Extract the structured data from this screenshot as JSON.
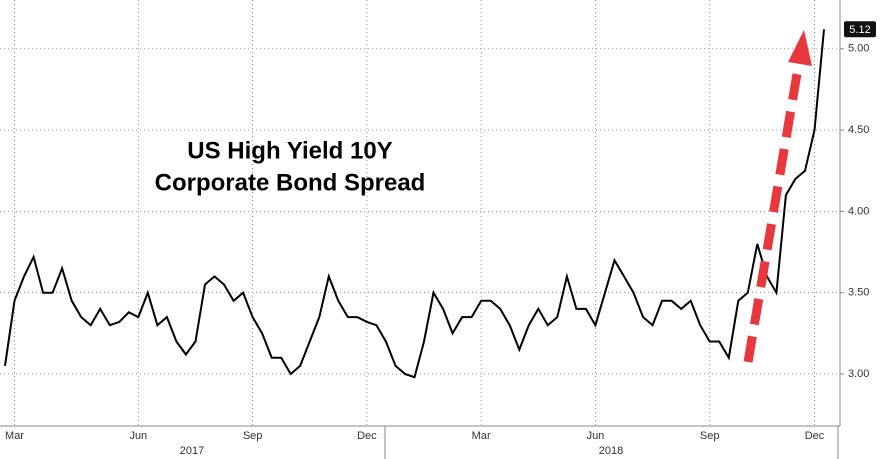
{
  "chart_data": {
    "type": "line",
    "title_lines": [
      "US High Yield 10Y",
      "Corporate Bond Spread"
    ],
    "categories": [
      null,
      "Mar",
      null,
      null,
      null,
      null,
      null,
      null,
      null,
      null,
      null,
      null,
      null,
      null,
      "Jun",
      null,
      null,
      null,
      null,
      null,
      null,
      null,
      null,
      null,
      null,
      null,
      "Sep",
      null,
      null,
      null,
      null,
      null,
      null,
      null,
      null,
      null,
      null,
      null,
      "Dec",
      null,
      null,
      null,
      null,
      null,
      null,
      null,
      null,
      null,
      null,
      null,
      "Mar",
      null,
      null,
      null,
      null,
      null,
      null,
      null,
      null,
      null,
      null,
      null,
      "Jun",
      null,
      null,
      null,
      null,
      null,
      null,
      null,
      null,
      null,
      null,
      null,
      "Sep",
      null,
      null,
      null,
      null,
      null,
      null,
      null,
      null,
      null,
      null,
      "Dec",
      null
    ],
    "year_labels": [
      "2017",
      "2018"
    ],
    "series": [
      {
        "name": "US High Yield 10Y Corporate Bond Spread",
        "color": "#000000",
        "values": [
          3.05,
          3.45,
          3.6,
          3.72,
          3.5,
          3.5,
          3.65,
          3.45,
          3.35,
          3.3,
          3.4,
          3.3,
          3.32,
          3.38,
          3.35,
          3.5,
          3.3,
          3.35,
          3.2,
          3.12,
          3.2,
          3.55,
          3.6,
          3.55,
          3.45,
          3.5,
          3.35,
          3.25,
          3.1,
          3.1,
          3.0,
          3.05,
          3.2,
          3.35,
          3.6,
          3.45,
          3.35,
          3.35,
          3.32,
          3.3,
          3.2,
          3.05,
          3.0,
          2.98,
          3.2,
          3.5,
          3.4,
          3.25,
          3.35,
          3.35,
          3.45,
          3.45,
          3.4,
          3.3,
          3.15,
          3.3,
          3.4,
          3.3,
          3.35,
          3.6,
          3.4,
          3.4,
          3.3,
          3.5,
          3.7,
          3.6,
          3.5,
          3.35,
          3.3,
          3.45,
          3.45,
          3.4,
          3.45,
          3.3,
          3.2,
          3.2,
          3.1,
          3.45,
          3.5,
          3.8,
          3.6,
          3.5,
          4.1,
          4.2,
          4.25,
          4.5,
          5.12
        ]
      }
    ],
    "ylim": [
      2.68,
      5.3
    ],
    "yticks": [
      {
        "value": 3,
        "label": "3.00"
      },
      {
        "value": 3.5,
        "label": "3.50"
      },
      {
        "value": 4,
        "label": "4.00"
      },
      {
        "value": 4.5,
        "label": "4.50"
      },
      {
        "value": 5,
        "label": "5.00"
      }
    ],
    "grid": true,
    "axis_side": "right"
  }
}
